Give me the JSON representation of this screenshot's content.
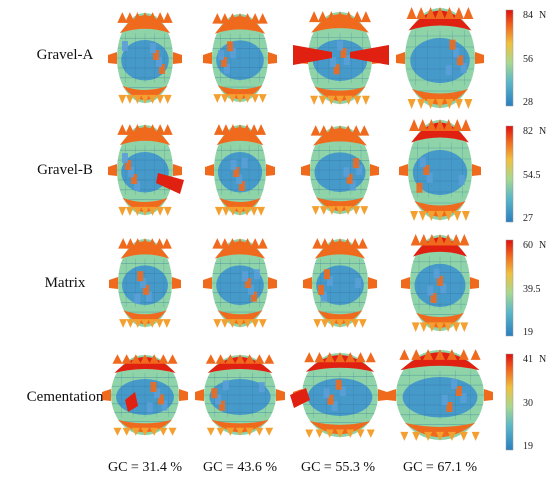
{
  "columns": [
    {
      "label": "GC = 31.4 %"
    },
    {
      "label": "GC = 43.6 %"
    },
    {
      "label": "GC = 55.3 %"
    },
    {
      "label": "GC = 67.1 %"
    }
  ],
  "rows": [
    {
      "label": "Gravel-A",
      "scale": {
        "max": "84",
        "mid": "56",
        "min": "28",
        "unit": "N"
      }
    },
    {
      "label": "Gravel-B",
      "scale": {
        "max": "82",
        "mid": "54.5",
        "min": "27",
        "unit": "N"
      }
    },
    {
      "label": "Matrix",
      "scale": {
        "max": "60",
        "mid": "39.5",
        "min": "19",
        "unit": "N"
      }
    },
    {
      "label": "Cementation",
      "scale": {
        "max": "41",
        "mid": "30",
        "min": "19",
        "unit": "N"
      }
    }
  ],
  "colors": {
    "sphere_low": "#3a8fd0",
    "sphere_mid": "#8fd4a8",
    "cap_high": "#f06a1e",
    "spike_max": "#e02010",
    "colorbar_stops": [
      "#2a7fc0",
      "#5ab8c8",
      "#a8d890",
      "#f0c040",
      "#f07020",
      "#e01010"
    ]
  }
}
